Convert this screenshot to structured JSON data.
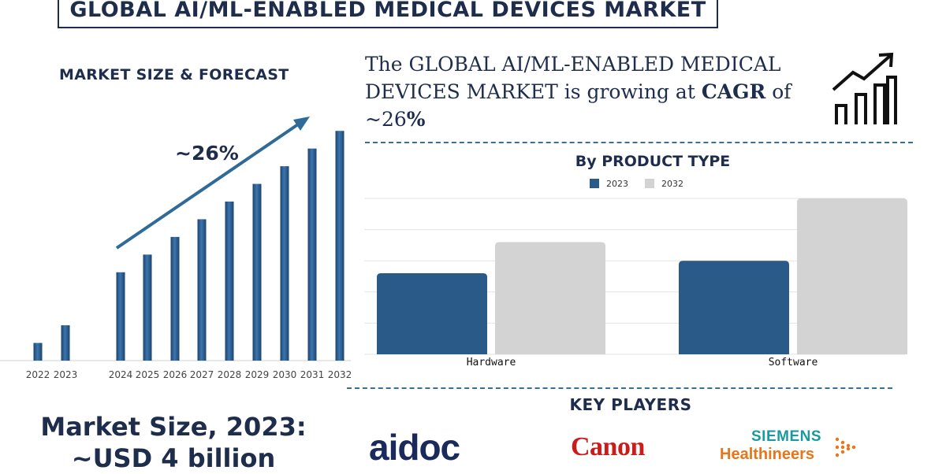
{
  "title": "GLOBAL AI/ML-ENABLED MEDICAL DEVICES MARKET",
  "forecast": {
    "heading": "MARKET SIZE & FORECAST",
    "cagr_label": "~26%"
  },
  "market_size": {
    "line1": "Market Size, 2023:",
    "line2": "~USD 4 billion"
  },
  "statement": {
    "prefix": "The GLOBAL  AI/ML-ENABLED MEDICAL DEVICES MARKET is growing at ",
    "cagr_word": "CAGR",
    "of_word": " of ",
    "value_num": "~26",
    "value_pct": "%"
  },
  "product_type": {
    "heading": "By PRODUCT TYPE"
  },
  "key_players": {
    "heading": "KEY PLAYERS",
    "logos": {
      "aidoc": "aidoc",
      "canon": "Canon",
      "siemens_line1": "SIEMENS",
      "siemens_line2": "Healthineers"
    }
  },
  "colors": {
    "navy": "#1f2d4d",
    "bar_blue": "#2a5a88",
    "bar_gray": "#d3d3d3",
    "arrow": "#2f6a98",
    "siemens_teal": "#1a9aa0",
    "siemens_orange": "#e8751a",
    "canon_red": "#cc1b1b"
  },
  "chart_data": [
    {
      "type": "bar",
      "categories": [
        "2022",
        "2023",
        "2024",
        "2025",
        "2026",
        "2027",
        "2028",
        "2029",
        "2030",
        "2031",
        "2032"
      ],
      "values": [
        1.0,
        2.0,
        5.0,
        6.0,
        7.0,
        8.0,
        9.0,
        10.0,
        11.0,
        12.0,
        13.0
      ],
      "title": "MARKET SIZE & FORECAST",
      "annotation": "~26%",
      "gap_after_index": 1,
      "ylim": [
        0,
        13.5
      ],
      "y_axis_shown": false,
      "grid": false,
      "color": "#2a5a88"
    },
    {
      "type": "bar",
      "title": "By PRODUCT TYPE",
      "categories": [
        "Hardware",
        "Software"
      ],
      "series": [
        {
          "name": "2023",
          "values": [
            2.6,
            3.0
          ],
          "color": "#2a5a88"
        },
        {
          "name": "2032",
          "values": [
            3.6,
            5.0
          ],
          "color": "#d3d3d3"
        }
      ],
      "ylim": [
        0,
        5
      ],
      "y_axis_shown": false,
      "grid": true,
      "legend": "top-center"
    }
  ]
}
